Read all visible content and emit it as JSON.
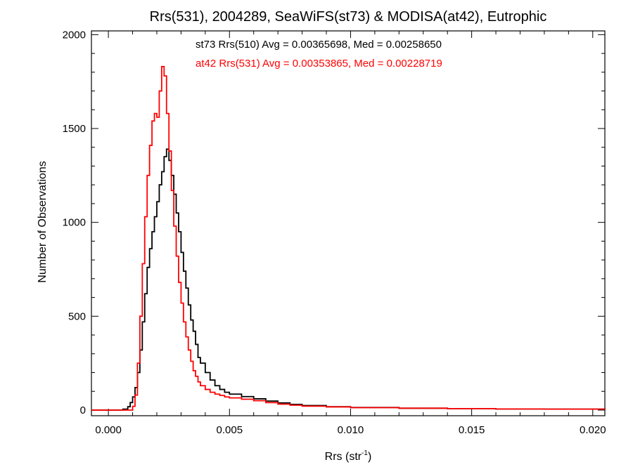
{
  "chart_data": {
    "type": "line",
    "step": true,
    "title": "Rrs(531), 2004289, SeaWiFS(st73) & MODISA(at42), Eutrophic",
    "xlabel": "Rrs (str",
    "xlabel_sup": "-1",
    "xlabel_suffix": ")",
    "ylabel": "Number of Observations",
    "xlim": [
      -0.0007,
      0.0205
    ],
    "ylim": [
      -30,
      2020
    ],
    "x_ticks": [
      0.0,
      0.005,
      0.01,
      0.015,
      0.02
    ],
    "x_tick_labels": [
      "0.000",
      "0.005",
      "0.010",
      "0.015",
      "0.020"
    ],
    "y_ticks": [
      0,
      500,
      1000,
      1500,
      2000
    ],
    "y_tick_labels": [
      "0",
      "500",
      "1000",
      "1500",
      "2000"
    ],
    "grid": false,
    "annotations": [
      {
        "text": "st73 Rrs(510) Avg = 0.00365698, Med = 0.00258650",
        "color": "#000000"
      },
      {
        "text": "at42 Rrs(531) Avg = 0.00353865, Med = 0.00228719",
        "color": "#ff0000"
      }
    ],
    "series": [
      {
        "color": "#000000",
        "points": [
          [
            -0.0007,
            0
          ],
          [
            0.0,
            0
          ],
          [
            0.0004,
            0
          ],
          [
            0.0006,
            5
          ],
          [
            0.0008,
            18
          ],
          [
            0.0009,
            40
          ],
          [
            0.001,
            70
          ],
          [
            0.0011,
            120
          ],
          [
            0.0012,
            200
          ],
          [
            0.0013,
            320
          ],
          [
            0.0014,
            470
          ],
          [
            0.0015,
            620
          ],
          [
            0.0016,
            760
          ],
          [
            0.0017,
            860
          ],
          [
            0.0018,
            950
          ],
          [
            0.0019,
            1030
          ],
          [
            0.002,
            1110
          ],
          [
            0.0021,
            1200
          ],
          [
            0.0022,
            1270
          ],
          [
            0.0023,
            1350
          ],
          [
            0.0024,
            1390
          ],
          [
            0.0025,
            1330
          ],
          [
            0.0026,
            1250
          ],
          [
            0.0027,
            1150
          ],
          [
            0.0028,
            1050
          ],
          [
            0.0029,
            950
          ],
          [
            0.003,
            840
          ],
          [
            0.0031,
            740
          ],
          [
            0.0032,
            650
          ],
          [
            0.0033,
            560
          ],
          [
            0.0034,
            480
          ],
          [
            0.0035,
            420
          ],
          [
            0.0036,
            350
          ],
          [
            0.0037,
            280
          ],
          [
            0.0038,
            250
          ],
          [
            0.004,
            200
          ],
          [
            0.0042,
            160
          ],
          [
            0.0044,
            130
          ],
          [
            0.0046,
            110
          ],
          [
            0.0048,
            95
          ],
          [
            0.005,
            85
          ],
          [
            0.0055,
            72
          ],
          [
            0.006,
            60
          ],
          [
            0.0065,
            48
          ],
          [
            0.007,
            38
          ],
          [
            0.0075,
            30
          ],
          [
            0.008,
            24
          ],
          [
            0.009,
            18
          ],
          [
            0.01,
            14
          ],
          [
            0.012,
            10
          ],
          [
            0.014,
            8
          ],
          [
            0.016,
            6
          ],
          [
            0.018,
            5
          ],
          [
            0.0205,
            4
          ]
        ]
      },
      {
        "color": "#ff0000",
        "points": [
          [
            -0.0007,
            0
          ],
          [
            0.0,
            0
          ],
          [
            0.0009,
            0
          ],
          [
            0.001,
            20
          ],
          [
            0.0011,
            80
          ],
          [
            0.0012,
            250
          ],
          [
            0.0013,
            500
          ],
          [
            0.0014,
            780
          ],
          [
            0.0015,
            1030
          ],
          [
            0.0016,
            1250
          ],
          [
            0.0017,
            1410
          ],
          [
            0.0018,
            1540
          ],
          [
            0.0019,
            1580
          ],
          [
            0.002,
            1560
          ],
          [
            0.0021,
            1700
          ],
          [
            0.0022,
            1830
          ],
          [
            0.0023,
            1780
          ],
          [
            0.0024,
            1580
          ],
          [
            0.0025,
            1380
          ],
          [
            0.0026,
            1170
          ],
          [
            0.0027,
            980
          ],
          [
            0.0028,
            820
          ],
          [
            0.0029,
            680
          ],
          [
            0.003,
            570
          ],
          [
            0.0031,
            470
          ],
          [
            0.0032,
            390
          ],
          [
            0.0033,
            320
          ],
          [
            0.0034,
            260
          ],
          [
            0.0035,
            210
          ],
          [
            0.0036,
            180
          ],
          [
            0.0037,
            150
          ],
          [
            0.0038,
            130
          ],
          [
            0.004,
            110
          ],
          [
            0.0042,
            95
          ],
          [
            0.0044,
            85
          ],
          [
            0.0046,
            78
          ],
          [
            0.0048,
            70
          ],
          [
            0.005,
            65
          ],
          [
            0.0055,
            58
          ],
          [
            0.006,
            50
          ],
          [
            0.0065,
            40
          ],
          [
            0.007,
            32
          ],
          [
            0.0075,
            26
          ],
          [
            0.008,
            21
          ],
          [
            0.009,
            17
          ],
          [
            0.01,
            13
          ],
          [
            0.012,
            10
          ],
          [
            0.014,
            8
          ],
          [
            0.016,
            6
          ],
          [
            0.018,
            5
          ],
          [
            0.0205,
            4
          ]
        ]
      }
    ]
  }
}
